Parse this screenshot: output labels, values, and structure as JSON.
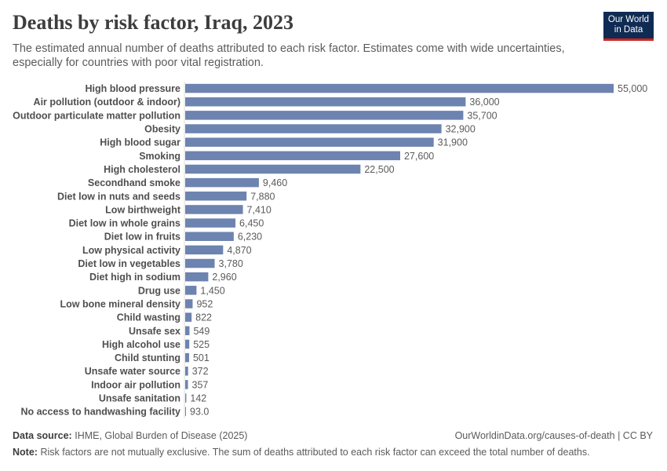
{
  "header": {
    "title": "Deaths by risk factor, Iraq, 2023",
    "subtitle": "The estimated annual number of deaths attributed to each risk factor. Estimates come with wide uncertainties, especially for countries with poor vital registration.",
    "logo_line1": "Our World",
    "logo_line2": "in Data"
  },
  "chart_data": {
    "type": "bar",
    "orientation": "horizontal",
    "title": "Deaths by risk factor, Iraq, 2023",
    "xlabel": "",
    "ylabel": "",
    "xlim": [
      0,
      55000
    ],
    "grid": false,
    "bar_color": "#6d83b0",
    "categories": [
      "High blood pressure",
      "Air pollution (outdoor & indoor)",
      "Outdoor particulate matter pollution",
      "Obesity",
      "High blood sugar",
      "Smoking",
      "High cholesterol",
      "Secondhand smoke",
      "Diet low in nuts and seeds",
      "Low birthweight",
      "Diet low in whole grains",
      "Diet low in fruits",
      "Low physical activity",
      "Diet low in vegetables",
      "Diet high in sodium",
      "Drug use",
      "Low bone mineral density",
      "Child wasting",
      "Unsafe sex",
      "High alcohol use",
      "Child stunting",
      "Unsafe water source",
      "Indoor air pollution",
      "Unsafe sanitation",
      "No access to handwashing facility"
    ],
    "values": [
      55000,
      36000,
      35700,
      32900,
      31900,
      27600,
      22500,
      9460,
      7880,
      7410,
      6450,
      6230,
      4870,
      3780,
      2960,
      1450,
      952,
      822,
      549,
      525,
      501,
      372,
      357,
      142,
      93
    ],
    "value_labels": [
      "55,000",
      "36,000",
      "35,700",
      "32,900",
      "31,900",
      "27,600",
      "22,500",
      "9,460",
      "7,880",
      "7,410",
      "6,450",
      "6,230",
      "4,870",
      "3,780",
      "2,960",
      "1,450",
      "952",
      "822",
      "549",
      "525",
      "501",
      "372",
      "357",
      "142",
      "93.0"
    ]
  },
  "footer": {
    "source_label": "Data source:",
    "source_text": "IHME, Global Burden of Disease (2025)",
    "url_text": "OurWorldinData.org/causes-of-death | CC BY",
    "note_label": "Note:",
    "note_text": "Risk factors are not mutually exclusive. The sum of deaths attributed to each risk factor can exceed the total number of deaths."
  }
}
